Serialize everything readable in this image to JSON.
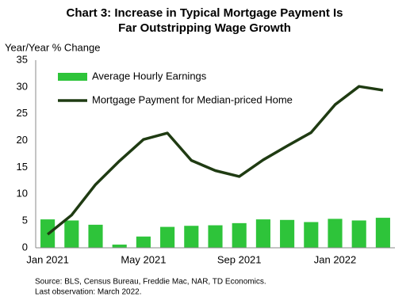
{
  "chart_data": {
    "type": "bar-line",
    "title": [
      "Chart 3: Increase in Typical Mortgage Payment Is",
      "Far Outstripping Wage Growth"
    ],
    "y_label": "Year/Year % Change",
    "notes": [
      "Source: BLS, Census Bureau, Freddie Mac, NAR, TD Economics.",
      "Last observation: March 2022."
    ],
    "categories": [
      "Jan 2021",
      null,
      null,
      null,
      "May 2021",
      null,
      null,
      null,
      "Sep 2021",
      null,
      null,
      null,
      "Jan 2022",
      null,
      null
    ],
    "series": [
      {
        "name": "Average Hourly Earnings",
        "type": "bar",
        "color": "#2ec43a",
        "values": [
          5.3,
          5.1,
          4.3,
          0.6,
          2.1,
          3.9,
          4.1,
          4.2,
          4.6,
          5.3,
          5.2,
          4.8,
          5.4,
          5.1,
          5.6
        ]
      },
      {
        "name": "Mortgage Payment for Median-priced Home",
        "type": "line",
        "color": "#1f3b12",
        "values": [
          2.5,
          6.1,
          11.8,
          16.2,
          20.2,
          21.4,
          16.3,
          14.4,
          13.3,
          16.4,
          19.0,
          21.5,
          26.7,
          30.1,
          29.4
        ]
      }
    ],
    "ylim": [
      0,
      35
    ],
    "yticks": [
      0,
      5,
      10,
      15,
      20,
      25,
      30,
      35
    ],
    "grid": false,
    "legend": "upper left"
  }
}
